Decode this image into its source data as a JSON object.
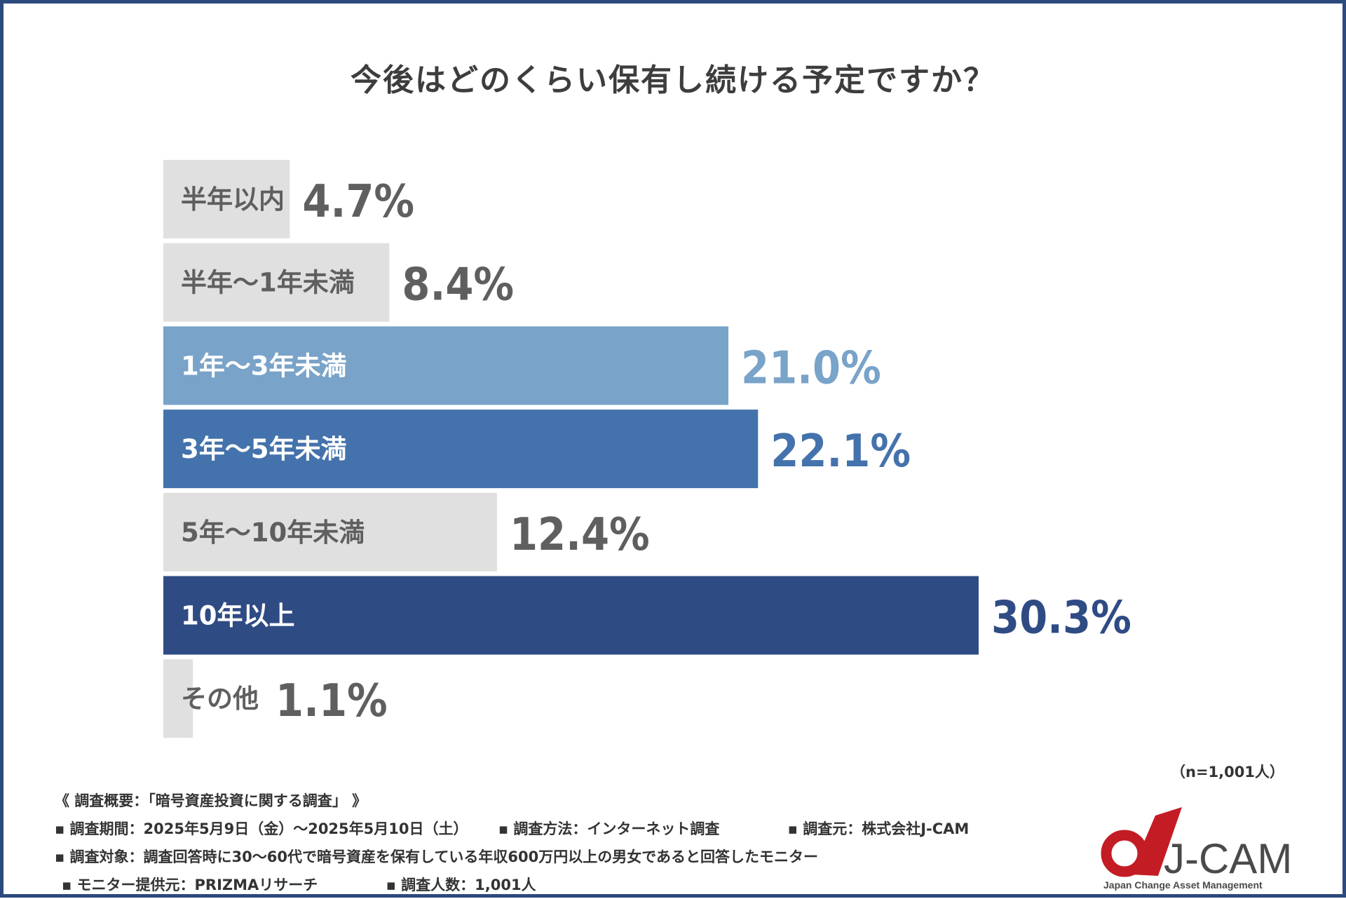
{
  "title": "今後はどのくらい保有し続ける予定ですか？",
  "chart_data": {
    "type": "bar",
    "orientation": "horizontal",
    "title": "今後はどのくらい保有し続ける予定ですか？",
    "unit": "%",
    "xlim": [
      0,
      30.3
    ],
    "categories": [
      "半年以内",
      "半年〜1年未満",
      "1年〜3年未満",
      "3年〜5年未満",
      "5年〜10年未満",
      "10年以上",
      "その他"
    ],
    "values": [
      4.7,
      8.4,
      21.0,
      22.1,
      12.4,
      30.3,
      1.1
    ],
    "value_labels": [
      "4.7%",
      "8.4%",
      "21.0%",
      "22.1%",
      "12.4%",
      "30.3%",
      "1.1%"
    ],
    "bar_colors": [
      "#e0e0e0",
      "#e0e0e0",
      "#79a3c8",
      "#4472ac",
      "#e0e0e0",
      "#2f4b84",
      "#e0e0e0"
    ],
    "value_colors": [
      "#5f5f5f",
      "#5f5f5f",
      "#79a3c8",
      "#4472ac",
      "#5f5f5f",
      "#2f4b84",
      "#5f5f5f"
    ],
    "label_colors": [
      "#5f5f5f",
      "#5f5f5f",
      "#ffffff",
      "#ffffff",
      "#5f5f5f",
      "#ffffff",
      "#5f5f5f"
    ],
    "grid": false,
    "legend": "none"
  },
  "sample_note": "（n=1,001人）",
  "footer": {
    "overview": "《 調査概要：「暗号資産投資に関する調査」 》",
    "period": "▪ 調査期間：2025年5月9日（金）〜2025年5月10日（土）",
    "method": "▪ 調査方法：インターネット調査",
    "source": "▪ 調査元：株式会社J-CAM",
    "target": "▪ 調査対象：調査回答時に30〜60代で暗号資産を保有している年収600万円以上の男女であると回答したモニター",
    "provider": "▪ モニター提供元：PRIZMAリサーチ",
    "count": "▪ 調査人数：1,001人"
  },
  "logo": {
    "name": "J-CAM",
    "tagline": "Japan Change Asset Management",
    "mark_color": "#c41c24",
    "text_color": "#4a4a4a"
  }
}
